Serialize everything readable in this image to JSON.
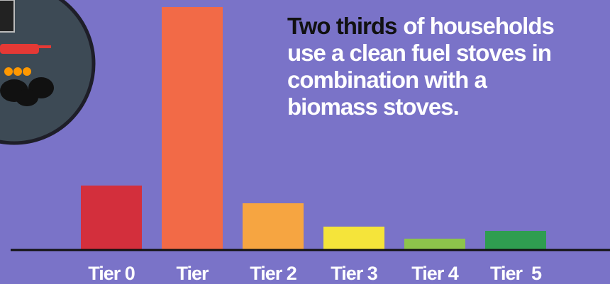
{
  "chart_data": {
    "type": "bar",
    "annotation": {
      "highlight": "Two thirds",
      "lines": [
        "of households",
        "use a clean fuel stoves in",
        "combination with a",
        "biomass stoves."
      ]
    },
    "categories": [
      "Tier 0",
      "Tier",
      "Tier 2",
      "Tier 3",
      "Tier 4",
      "Tier  5"
    ],
    "values": [
      90,
      342,
      65,
      32,
      15,
      26
    ],
    "colors": [
      "#d32f3c",
      "#f26a47",
      "#f6a541",
      "#f5e43a",
      "#8dc44b",
      "#2f9d50"
    ],
    "ylim": [
      0,
      342
    ]
  }
}
